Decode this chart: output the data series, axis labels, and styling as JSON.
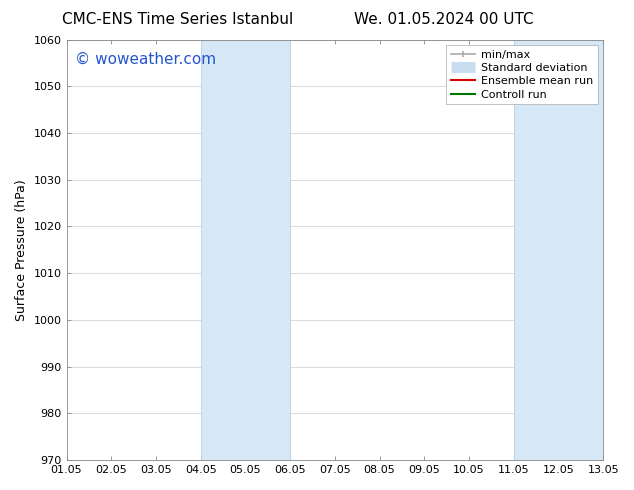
{
  "title_left": "CMC-ENS Time Series Istanbul",
  "title_right": "We. 01.05.2024 00 UTC",
  "ylabel": "Surface Pressure (hPa)",
  "xlim": [
    0,
    12
  ],
  "ylim": [
    970,
    1060
  ],
  "yticks": [
    970,
    980,
    990,
    1000,
    1010,
    1020,
    1030,
    1040,
    1050,
    1060
  ],
  "xtick_labels": [
    "01.05",
    "02.05",
    "03.05",
    "04.05",
    "05.05",
    "06.05",
    "07.05",
    "08.05",
    "09.05",
    "10.05",
    "11.05",
    "12.05",
    "13.05"
  ],
  "shaded_bands": [
    {
      "x_start": 3,
      "x_end": 5,
      "color": "#d6e8f5"
    },
    {
      "x_start": 10,
      "x_end": 12,
      "color": "#d6e8f5"
    }
  ],
  "band_edge_color": "#b8d0e8",
  "watermark_text": "© woweather.com",
  "watermark_color": "#2255cc",
  "watermark_fontsize": 11,
  "legend_entries": [
    {
      "label": "min/max",
      "color": "#aaaaaa",
      "lw": 1.2,
      "ls": "-"
    },
    {
      "label": "Standard deviation",
      "color": "#c8ddf0",
      "lw": 8,
      "ls": "-"
    },
    {
      "label": "Ensemble mean run",
      "color": "#dd0000",
      "lw": 1.5,
      "ls": "-"
    },
    {
      "label": "Controll run",
      "color": "#007700",
      "lw": 1.5,
      "ls": "-"
    }
  ],
  "background_color": "#ffffff",
  "plot_bg_color": "#ffffff",
  "grid_color": "#cccccc",
  "title_fontsize": 11,
  "axis_label_fontsize": 9,
  "tick_fontsize": 8,
  "legend_fontsize": 8
}
